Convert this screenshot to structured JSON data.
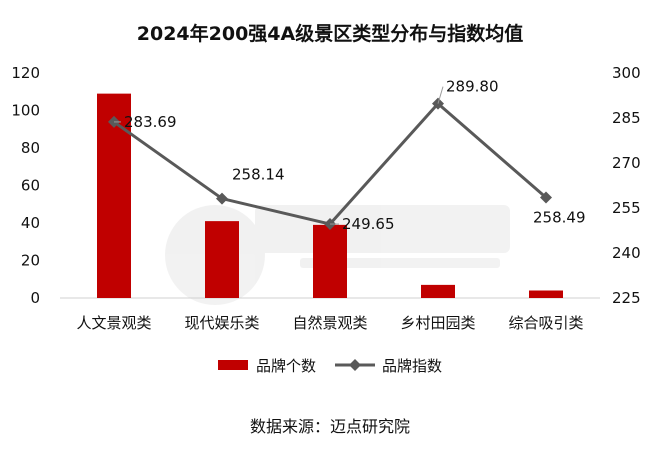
{
  "chart_data": {
    "type": "bar",
    "title": "2024年200强4A级景区类型分布与指数均值",
    "categories": [
      "人文景观类",
      "现代娱乐类",
      "自然景观类",
      "乡村田园类",
      "综合吸引类"
    ],
    "series": [
      {
        "name": "品牌个数",
        "type": "bar",
        "axis": "left",
        "color": "#c00000",
        "values": [
          109,
          41,
          39,
          7,
          4
        ]
      },
      {
        "name": "品牌指数",
        "type": "line",
        "axis": "right",
        "color": "#595959",
        "marker": "diamond",
        "values": [
          283.69,
          258.14,
          249.65,
          289.8,
          258.49
        ],
        "data_labels": [
          "283.69",
          "258.14",
          "249.65",
          "289.80",
          "258.49"
        ]
      }
    ],
    "y_left": {
      "min": 0,
      "max": 120,
      "ticks": [
        0,
        20,
        40,
        60,
        80,
        100,
        120
      ]
    },
    "y_right": {
      "min": 225,
      "max": 300,
      "ticks": [
        225,
        240,
        255,
        270,
        285,
        300
      ]
    },
    "grid": false,
    "legend_position": "bottom"
  },
  "footer": {
    "source_text": "数据来源：迈点研究院"
  }
}
